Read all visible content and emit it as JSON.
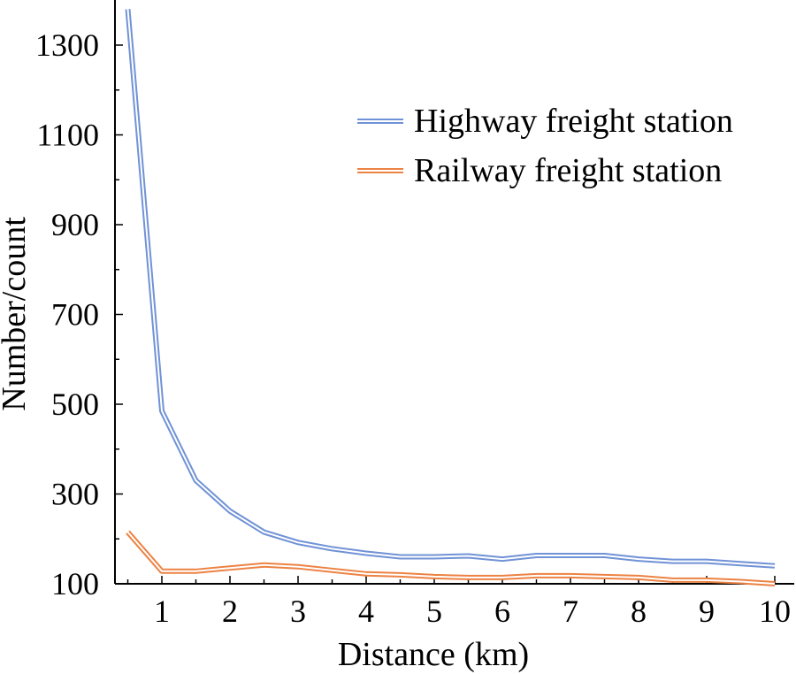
{
  "chart_data": {
    "type": "line",
    "title": "",
    "xlabel": "Distance (km)",
    "ylabel": "Number/count",
    "xlim": [
      0.5,
      10
    ],
    "ylim": [
      100,
      1390
    ],
    "xticks": [
      1,
      2,
      3,
      4,
      5,
      6,
      7,
      8,
      9,
      10
    ],
    "yticks": [
      100,
      300,
      500,
      700,
      900,
      1100,
      1300
    ],
    "grid": false,
    "legend_position": "top-right",
    "x": [
      0.5,
      1,
      1.5,
      2,
      2.5,
      3,
      3.5,
      4,
      4.5,
      5,
      5.5,
      6,
      6.5,
      7,
      7.5,
      8,
      8.5,
      9,
      9.5,
      10
    ],
    "series": [
      {
        "name": "Highway freight station",
        "color": "#7092d6",
        "values": [
          1380,
          485,
          330,
          262,
          215,
          192,
          178,
          168,
          160,
          160,
          162,
          155,
          163,
          163,
          163,
          155,
          150,
          150,
          145,
          140
        ]
      },
      {
        "name": "Railway freight station",
        "color": "#ec8243",
        "values": [
          215,
          128,
          128,
          135,
          142,
          138,
          130,
          122,
          120,
          116,
          114,
          114,
          118,
          118,
          116,
          114,
          108,
          108,
          105,
          100
        ]
      }
    ]
  }
}
